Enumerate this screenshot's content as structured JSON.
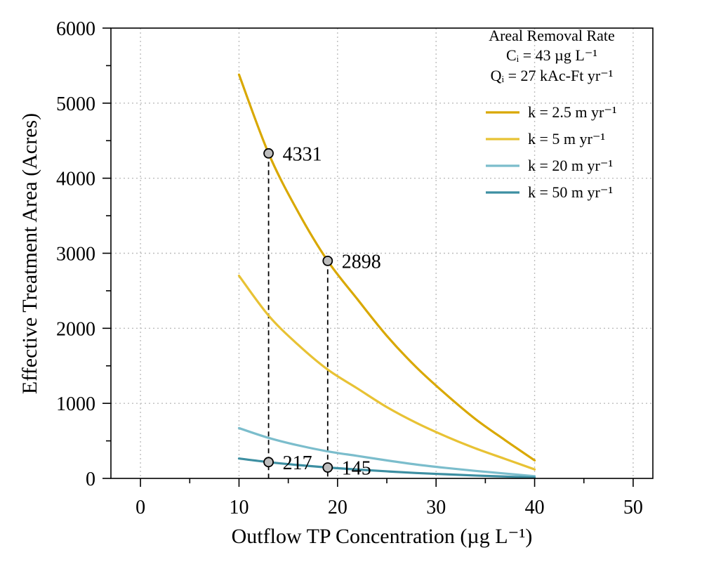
{
  "chart_data": {
    "type": "line",
    "xlabel": "Outflow TP Concentration (µg L⁻¹)",
    "ylabel": "Effective Treatment Area (Acres)",
    "xlim": [
      -3,
      52
    ],
    "ylim": [
      0,
      6000
    ],
    "x_ticks": [
      0,
      10,
      20,
      30,
      40,
      50
    ],
    "y_ticks": [
      0,
      1000,
      2000,
      3000,
      4000,
      5000,
      6000
    ],
    "x_minor_step": 5,
    "y_minor_step": 500,
    "grid": true,
    "legend_position": "top-right",
    "legend_title_lines": [
      "Areal Removal Rate",
      "Cᵢ = 43 µg L⁻¹",
      "Qᵢ =  27 kAc-Ft yr⁻¹"
    ],
    "series": [
      {
        "name": "k = 2.5 m yr⁻¹",
        "color": "#d9a800",
        "x": [
          10,
          13,
          16,
          19,
          22,
          25,
          28,
          31,
          34,
          37,
          40
        ],
        "y": [
          5380,
          4331,
          3550,
          2898,
          2390,
          1900,
          1480,
          1120,
          790,
          510,
          240
        ]
      },
      {
        "name": "k = 5 m yr⁻¹",
        "color": "#e8c234",
        "x": [
          10,
          13,
          16,
          19,
          22,
          25,
          28,
          31,
          34,
          37,
          40
        ],
        "y": [
          2700,
          2170,
          1780,
          1450,
          1200,
          950,
          740,
          560,
          400,
          260,
          120
        ]
      },
      {
        "name": "k = 20 m yr⁻¹",
        "color": "#7bbdcc",
        "x": [
          10,
          13,
          16,
          19,
          22,
          25,
          28,
          31,
          34,
          37,
          40
        ],
        "y": [
          670,
          540,
          440,
          360,
          300,
          240,
          185,
          140,
          100,
          65,
          30
        ]
      },
      {
        "name": "k = 50 m yr⁻¹",
        "color": "#3d8fa2",
        "x": [
          10,
          13,
          16,
          19,
          22,
          25,
          28,
          31,
          34,
          37,
          40
        ],
        "y": [
          265,
          217,
          178,
          145,
          118,
          94,
          72,
          55,
          38,
          25,
          12
        ]
      }
    ],
    "highlight_points": [
      {
        "x": 13,
        "y": 4331,
        "label": "4331"
      },
      {
        "x": 19,
        "y": 2898,
        "label": "2898"
      },
      {
        "x": 13,
        "y": 217,
        "label": "217"
      },
      {
        "x": 19,
        "y": 145,
        "label": "145"
      }
    ],
    "drop_lines": [
      {
        "x": 13,
        "y": 4331
      },
      {
        "x": 19,
        "y": 2898
      }
    ]
  }
}
